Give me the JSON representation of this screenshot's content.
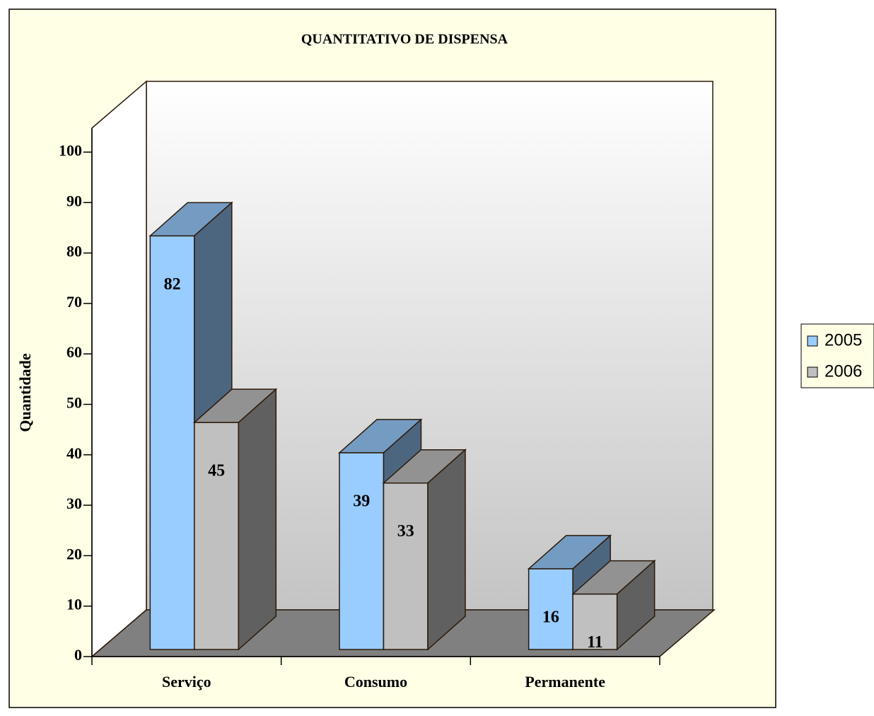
{
  "chart_data": {
    "type": "bar3d",
    "title": "QUANTITATIVO DE DISPENSA",
    "y_label": "Quantidade",
    "categories": [
      "Serviço",
      "Consumo",
      "Permanente"
    ],
    "series": [
      {
        "name": "2005",
        "color": "#99ccff",
        "values": [
          82,
          39,
          16
        ]
      },
      {
        "name": "2006",
        "color": "#c0c0c0",
        "values": [
          45,
          33,
          11
        ]
      }
    ],
    "ylim": [
      0,
      100
    ],
    "yticks": [
      0,
      10,
      20,
      30,
      40,
      50,
      60,
      70,
      80,
      90,
      100
    ],
    "grid": false,
    "legend": "right"
  }
}
